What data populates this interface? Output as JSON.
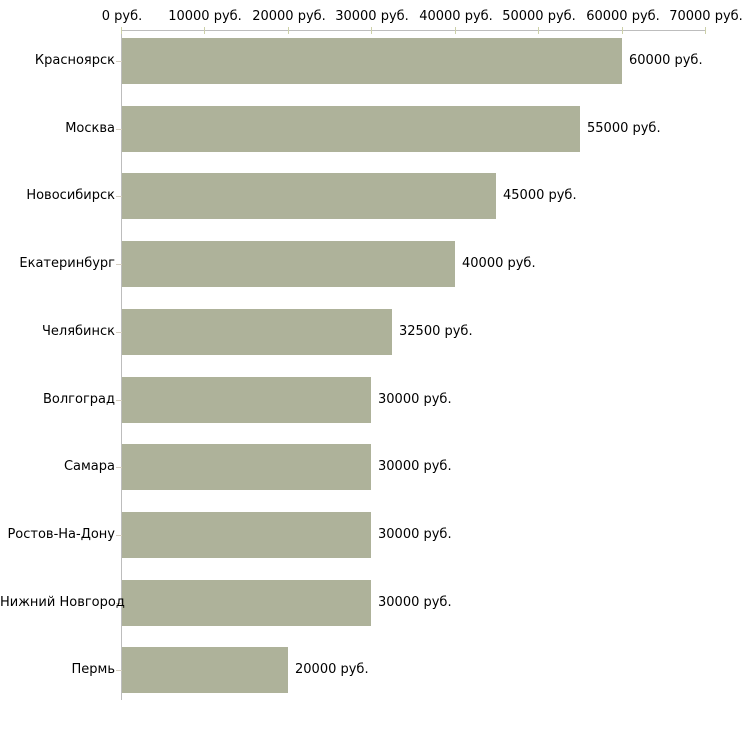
{
  "chart_data": {
    "type": "bar",
    "orientation": "horizontal",
    "title": "",
    "xlabel": "",
    "ylabel": "",
    "xlim": [
      0,
      70000
    ],
    "grid": false,
    "legend": null,
    "categories": [
      "Красноярск",
      "Москва",
      "Новосибирск",
      "Екатеринбург",
      "Челябинск",
      "Волгоград",
      "Самара",
      "Ростов-На-Дону",
      "Нижний Новгород",
      "Пермь"
    ],
    "values": [
      60000,
      55000,
      45000,
      40000,
      32500,
      30000,
      30000,
      30000,
      30000,
      20000
    ],
    "value_labels": [
      "60000 руб.",
      "55000 руб.",
      "45000 руб.",
      "40000 руб.",
      "32500 руб.",
      "30000 руб.",
      "30000 руб.",
      "30000 руб.",
      "30000 руб.",
      "20000 руб."
    ],
    "x_tick_values": [
      0,
      10000,
      20000,
      30000,
      40000,
      50000,
      60000,
      70000
    ],
    "x_tick_labels": [
      "0 руб.",
      "10000 руб.",
      "20000 руб.",
      "30000 руб.",
      "40000 руб.",
      "50000 руб.",
      "60000 руб.",
      "70000 руб."
    ],
    "colors": {
      "bar": "#aeb29a",
      "axis_line": "#bdbdbd",
      "x_tick": "#ccd0a8",
      "cat_tick": "#d4cdc0",
      "text": "#000000",
      "background": "#ffffff"
    }
  }
}
